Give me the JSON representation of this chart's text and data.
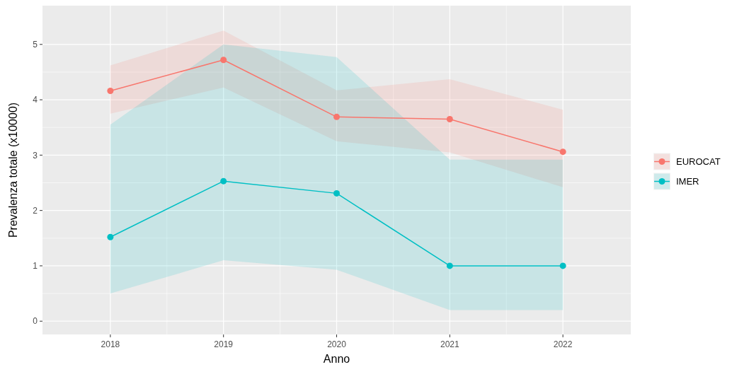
{
  "chart_data": {
    "type": "line",
    "xlabel": "Anno",
    "ylabel": "Prevalenza totale (x10000)",
    "x": [
      2018,
      2019,
      2020,
      2021,
      2022
    ],
    "series": [
      {
        "name": "EUROCAT",
        "color": "#f8766d",
        "values": [
          4.16,
          4.72,
          3.69,
          3.65,
          3.06
        ],
        "lower": [
          3.75,
          4.22,
          3.25,
          3.05,
          2.42
        ],
        "upper": [
          4.62,
          5.25,
          4.17,
          4.37,
          3.82
        ]
      },
      {
        "name": "IMER",
        "color": "#00bfc4",
        "values": [
          1.52,
          2.53,
          2.31,
          1.0,
          1.0
        ],
        "lower": [
          0.5,
          1.1,
          0.93,
          0.2,
          0.2
        ],
        "upper": [
          3.55,
          5.0,
          4.77,
          2.92,
          2.92
        ]
      }
    ],
    "xlim": [
      2017.4,
      2022.6
    ],
    "ylim": [
      -0.24,
      5.7
    ],
    "xticks": [
      2018,
      2019,
      2020,
      2021,
      2022
    ],
    "yticks": [
      0,
      1,
      2,
      3,
      4,
      5
    ],
    "grid": true,
    "legend": "right",
    "marker": "circle",
    "line_style": "solid"
  }
}
